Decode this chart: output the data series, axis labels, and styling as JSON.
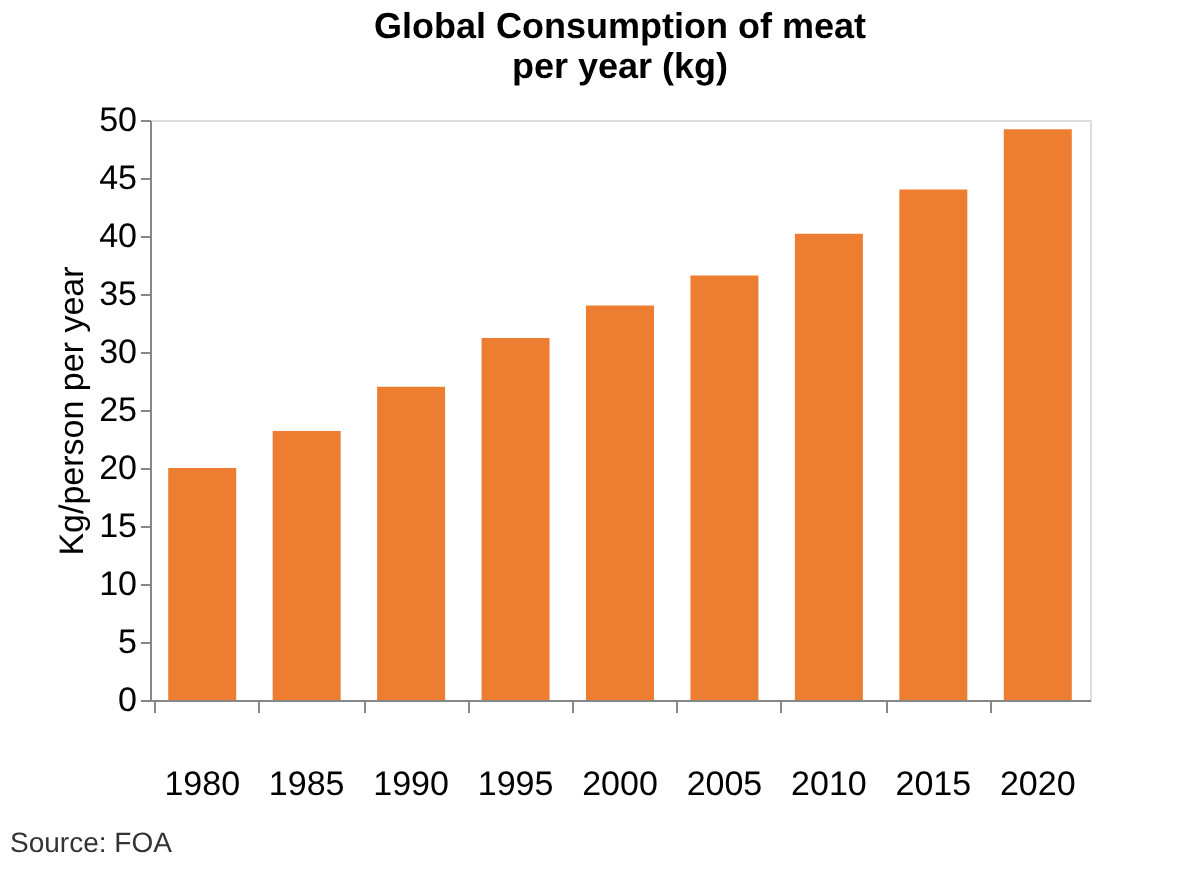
{
  "chart_data": {
    "type": "bar",
    "title": [
      "Global Consumption  of meat",
      "per year (kg)"
    ],
    "ylabel": "Kg/person per year",
    "categories": [
      "1980",
      "1985",
      "1990",
      "1995",
      "2000",
      "2005",
      "2010",
      "2015",
      "2020"
    ],
    "values": [
      20,
      23.2,
      27,
      31.2,
      34,
      36.6,
      40.2,
      44,
      49.2
    ],
    "color": "#ed7d31",
    "ylim": [
      0,
      50
    ],
    "yticks": [
      0,
      5,
      10,
      15,
      20,
      25,
      30,
      35,
      40,
      45,
      50
    ],
    "grid": false,
    "annotations": [
      "Source: FOA"
    ]
  }
}
